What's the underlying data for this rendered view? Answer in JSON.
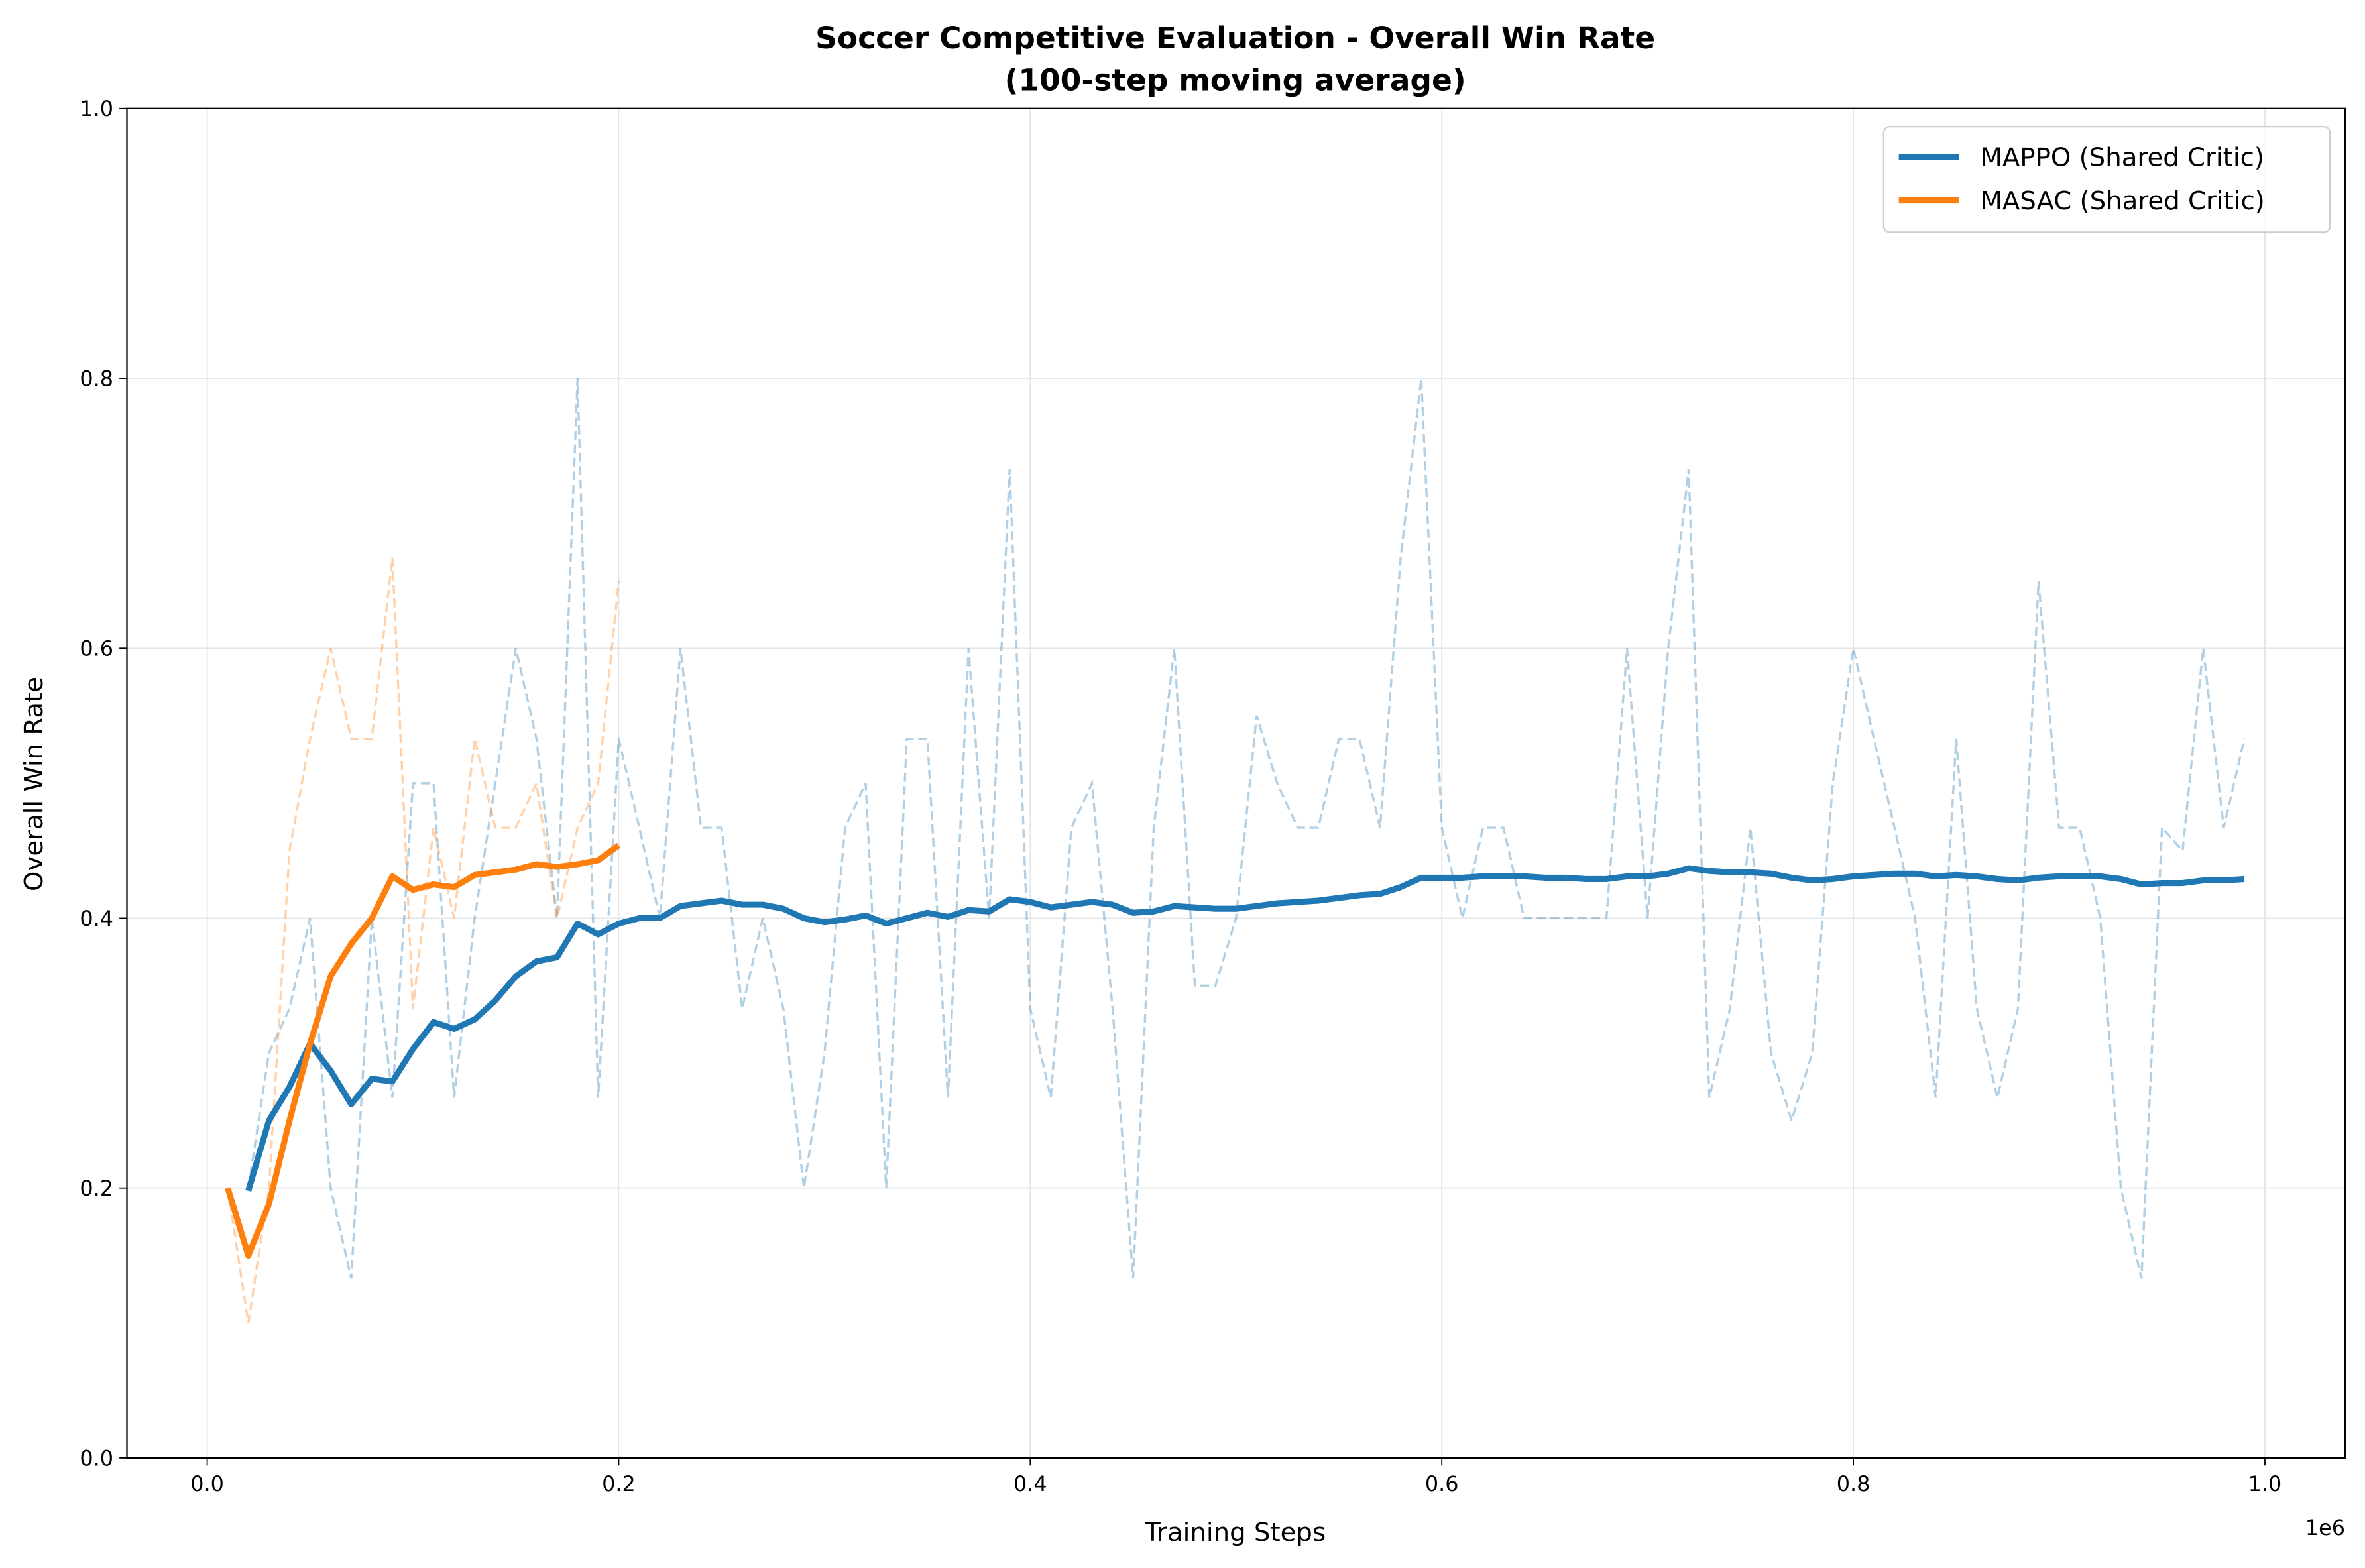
{
  "chart_data": {
    "type": "line",
    "title": "Soccer Competitive Evaluation - Overall Win Rate",
    "subtitle": "(100-step moving average)",
    "x_label": "Training Steps",
    "y_label": "Overall Win Rate",
    "x_offset_label": "1e6",
    "xlim": [
      -39000,
      1039000
    ],
    "ylim": [
      0,
      1
    ],
    "xticks": [
      {
        "value": 0,
        "label": "0.0"
      },
      {
        "value": 200000,
        "label": "0.2"
      },
      {
        "value": 400000,
        "label": "0.4"
      },
      {
        "value": 600000,
        "label": "0.6"
      },
      {
        "value": 800000,
        "label": "0.8"
      },
      {
        "value": 1000000,
        "label": "1.0"
      }
    ],
    "yticks": [
      {
        "value": 0,
        "label": "0.0"
      },
      {
        "value": 0.2,
        "label": "0.2"
      },
      {
        "value": 0.4,
        "label": "0.4"
      },
      {
        "value": 0.6,
        "label": "0.6"
      },
      {
        "value": 0.8,
        "label": "0.8"
      },
      {
        "value": 1,
        "label": "1.0"
      }
    ],
    "grid": true,
    "legend": "upper right",
    "series": [
      {
        "name": "MAPPO (Shared Critic)",
        "color": "#1f77b4",
        "x": [
          20000,
          30000,
          40000,
          50000,
          60000,
          70000,
          80000,
          90000,
          100000,
          110000,
          120000,
          130000,
          140000,
          150000,
          160000,
          170000,
          180000,
          190000,
          200000,
          210000,
          220000,
          230000,
          240000,
          250000,
          260000,
          270000,
          280000,
          290000,
          300000,
          310000,
          320000,
          330000,
          340000,
          350000,
          360000,
          370000,
          380000,
          390000,
          400000,
          410000,
          420000,
          430000,
          440000,
          450000,
          460000,
          470000,
          480000,
          490000,
          500000,
          510000,
          520000,
          530000,
          540000,
          550000,
          560000,
          570000,
          580000,
          590000,
          600000,
          610000,
          620000,
          630000,
          640000,
          650000,
          660000,
          670000,
          680000,
          690000,
          700000,
          710000,
          720000,
          730000,
          740000,
          750000,
          760000,
          770000,
          780000,
          790000,
          800000,
          810000,
          820000,
          830000,
          840000,
          850000,
          860000,
          870000,
          880000,
          890000,
          900000,
          910000,
          920000,
          930000,
          940000,
          950000,
          960000,
          970000,
          980000,
          990000
        ],
        "values": [
          0.198,
          0.25,
          0.275,
          0.307,
          0.287,
          0.262,
          0.281,
          0.279,
          0.303,
          0.323,
          0.318,
          0.325,
          0.339,
          0.357,
          0.368,
          0.371,
          0.396,
          0.388,
          0.396,
          0.4,
          0.4,
          0.409,
          0.411,
          0.413,
          0.41,
          0.41,
          0.407,
          0.4,
          0.397,
          0.399,
          0.402,
          0.396,
          0.4,
          0.404,
          0.401,
          0.406,
          0.405,
          0.414,
          0.412,
          0.408,
          0.41,
          0.412,
          0.41,
          0.404,
          0.405,
          0.409,
          0.408,
          0.407,
          0.407,
          0.409,
          0.411,
          0.412,
          0.413,
          0.415,
          0.417,
          0.418,
          0.423,
          0.43,
          0.43,
          0.43,
          0.431,
          0.431,
          0.431,
          0.43,
          0.43,
          0.429,
          0.429,
          0.431,
          0.431,
          0.433,
          0.437,
          0.435,
          0.434,
          0.434,
          0.433,
          0.43,
          0.428,
          0.429,
          0.431,
          0.432,
          0.433,
          0.433,
          0.431,
          0.432,
          0.431,
          0.429,
          0.428,
          0.43,
          0.431,
          0.431,
          0.431,
          0.429,
          0.425,
          0.426,
          0.426,
          0.428,
          0.428,
          0.429
        ],
        "raw_values": [
          0.2,
          0.3,
          0.333,
          0.4,
          0.2,
          0.133,
          0.4,
          0.267,
          0.5,
          0.5,
          0.267,
          0.4,
          0.5,
          0.6,
          0.533,
          0.4,
          0.8,
          0.267,
          0.533,
          0.467,
          0.4,
          0.6,
          0.467,
          0.467,
          0.333,
          0.4,
          0.333,
          0.2,
          0.3,
          0.467,
          0.5,
          0.2,
          0.533,
          0.533,
          0.267,
          0.6,
          0.4,
          0.733,
          0.333,
          0.267,
          0.467,
          0.5,
          0.333,
          0.133,
          0.467,
          0.6,
          0.35,
          0.35,
          0.4,
          0.55,
          0.5,
          0.467,
          0.467,
          0.533,
          0.533,
          0.467,
          0.667,
          0.8,
          0.467,
          0.4,
          0.467,
          0.467,
          0.4,
          0.4,
          0.4,
          0.4,
          0.4,
          0.6,
          0.4,
          0.6,
          0.733,
          0.267,
          0.333,
          0.467,
          0.3,
          0.25,
          0.3,
          0.5,
          0.6,
          0.533,
          0.467,
          0.4,
          0.267,
          0.533,
          0.333,
          0.267,
          0.333,
          0.65,
          0.467,
          0.467,
          0.4,
          0.2,
          0.133,
          0.467,
          0.45,
          0.6,
          0.467,
          0.533
        ]
      },
      {
        "name": "MASAC (Shared Critic)",
        "color": "#ff7f0e",
        "x": [
          10000,
          20000,
          30000,
          40000,
          50000,
          60000,
          70000,
          80000,
          90000,
          100000,
          110000,
          120000,
          130000,
          140000,
          150000,
          160000,
          170000,
          180000,
          190000,
          200000
        ],
        "values": [
          0.2,
          0.15,
          0.188,
          0.25,
          0.307,
          0.357,
          0.381,
          0.4,
          0.431,
          0.421,
          0.425,
          0.423,
          0.432,
          0.434,
          0.436,
          0.44,
          0.438,
          0.44,
          0.443,
          0.454
        ],
        "raw_values": [
          0.2,
          0.1,
          0.2,
          0.45,
          0.533,
          0.6,
          0.533,
          0.533,
          0.667,
          0.333,
          0.467,
          0.4,
          0.533,
          0.467,
          0.467,
          0.5,
          0.4,
          0.467,
          0.5,
          0.65
        ]
      }
    ]
  }
}
